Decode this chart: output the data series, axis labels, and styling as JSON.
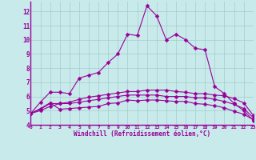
{
  "background_color": "#c8eaea",
  "line_color": "#990099",
  "grid_color": "#a0cccc",
  "xlabel": "Windchill (Refroidissement éolien,°C)",
  "xlim": [
    0,
    23
  ],
  "ylim": [
    4,
    12.7
  ],
  "yticks": [
    4,
    5,
    6,
    7,
    8,
    9,
    10,
    11,
    12
  ],
  "xticks": [
    0,
    1,
    2,
    3,
    4,
    5,
    6,
    7,
    8,
    9,
    10,
    11,
    12,
    13,
    14,
    15,
    16,
    17,
    18,
    19,
    20,
    21,
    22,
    23
  ],
  "curves": [
    {
      "x": [
        0,
        1,
        2,
        3,
        4,
        5,
        6,
        7,
        8,
        9,
        10,
        11,
        12,
        13,
        14,
        15,
        16,
        17,
        18,
        19,
        20,
        21,
        22,
        23
      ],
      "y": [
        4.8,
        5.6,
        6.3,
        6.3,
        6.2,
        7.3,
        7.5,
        7.7,
        8.4,
        9.0,
        10.4,
        10.3,
        12.4,
        11.7,
        10.0,
        10.4,
        10.0,
        9.4,
        9.3,
        6.7,
        6.2,
        5.5,
        5.0,
        4.3
      ]
    },
    {
      "x": [
        0,
        1,
        2,
        3,
        4,
        5,
        6,
        7,
        8,
        9,
        10,
        11,
        12,
        13,
        14,
        15,
        16,
        17,
        18,
        19,
        20,
        21,
        22,
        23
      ],
      "y": [
        4.8,
        5.15,
        5.55,
        5.1,
        5.15,
        5.2,
        5.25,
        5.3,
        5.5,
        5.55,
        5.75,
        5.7,
        5.75,
        5.75,
        5.7,
        5.65,
        5.65,
        5.5,
        5.45,
        5.35,
        5.2,
        4.95,
        4.75,
        4.35
      ]
    },
    {
      "x": [
        0,
        1,
        2,
        3,
        4,
        5,
        6,
        7,
        8,
        9,
        10,
        11,
        12,
        13,
        14,
        15,
        16,
        17,
        18,
        19,
        20,
        21,
        22,
        23
      ],
      "y": [
        4.8,
        5.1,
        5.5,
        5.5,
        5.5,
        5.6,
        5.7,
        5.8,
        5.9,
        6.0,
        6.1,
        6.1,
        6.1,
        6.1,
        6.0,
        6.0,
        6.0,
        5.9,
        5.9,
        5.8,
        5.65,
        5.45,
        5.15,
        4.5
      ]
    },
    {
      "x": [
        0,
        1,
        2,
        3,
        4,
        5,
        6,
        7,
        8,
        9,
        10,
        11,
        12,
        13,
        14,
        15,
        16,
        17,
        18,
        19,
        20,
        21,
        22,
        23
      ],
      "y": [
        4.8,
        5.0,
        5.3,
        5.5,
        5.6,
        5.8,
        5.95,
        6.05,
        6.15,
        6.25,
        6.35,
        6.35,
        6.45,
        6.45,
        6.45,
        6.35,
        6.3,
        6.2,
        6.2,
        6.1,
        6.05,
        5.85,
        5.55,
        4.65
      ]
    }
  ]
}
